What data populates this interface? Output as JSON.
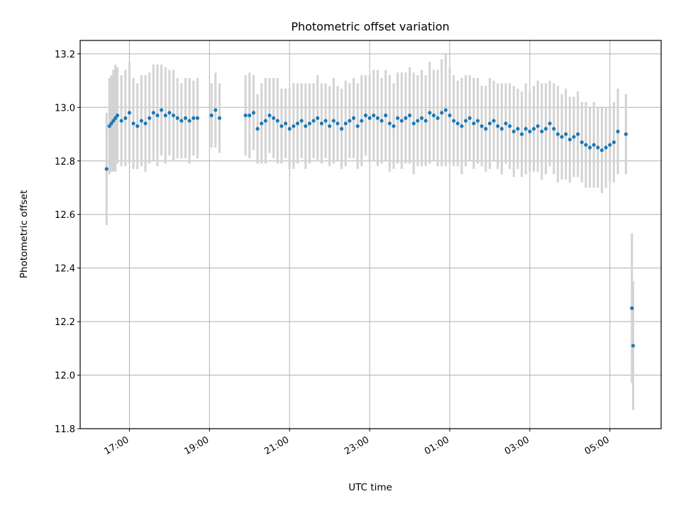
{
  "chart_data": {
    "type": "scatter",
    "title": "Photometric offset variation",
    "xlabel": "UTC time",
    "ylabel": "Photometric offset",
    "x_tick_labels": [
      "17:00",
      "19:00",
      "21:00",
      "23:00",
      "01:00",
      "03:00",
      "05:00"
    ],
    "x_tick_hours": [
      17,
      19,
      21,
      23,
      25,
      27,
      29
    ],
    "y_ticks": [
      11.8,
      12.0,
      12.2,
      12.4,
      12.6,
      12.8,
      13.0,
      13.2
    ],
    "xlim_hours": [
      15.77,
      30.28
    ],
    "ylim": [
      11.8,
      13.25
    ],
    "grid": true,
    "colors": {
      "points": "#1f77b4",
      "error_bars": "#d3d3d3",
      "grid": "#b0b0b0"
    },
    "series": [
      {
        "x_hours": [
          16.43,
          16.5,
          16.55,
          16.6,
          16.65,
          16.7,
          16.8,
          16.9,
          17.0,
          17.1,
          17.2,
          17.3,
          17.4,
          17.5,
          17.6,
          17.7,
          17.8,
          17.9,
          18.0,
          18.1,
          18.2,
          18.3,
          18.4,
          18.5,
          18.6,
          18.7,
          19.05,
          19.15,
          19.25,
          19.9,
          20.0,
          20.1,
          20.2,
          20.3,
          20.4,
          20.5,
          20.6,
          20.7,
          20.8,
          20.9,
          21.0,
          21.1,
          21.2,
          21.3,
          21.4,
          21.5,
          21.6,
          21.7,
          21.8,
          21.9,
          22.0,
          22.1,
          22.2,
          22.3,
          22.4,
          22.5,
          22.6,
          22.7,
          22.8,
          22.9,
          23.0,
          23.1,
          23.2,
          23.3,
          23.4,
          23.5,
          23.6,
          23.7,
          23.8,
          23.9,
          24.0,
          24.1,
          24.2,
          24.3,
          24.4,
          24.5,
          24.6,
          24.7,
          24.8,
          24.9,
          25.0,
          25.1,
          25.2,
          25.3,
          25.4,
          25.5,
          25.6,
          25.7,
          25.8,
          25.9,
          26.0,
          26.1,
          26.2,
          26.3,
          26.4,
          26.5,
          26.6,
          26.7,
          26.8,
          26.9,
          27.0,
          27.1,
          27.2,
          27.3,
          27.4,
          27.5,
          27.6,
          27.7,
          27.8,
          27.9,
          28.0,
          28.1,
          28.2,
          28.3,
          28.4,
          28.5,
          28.6,
          28.7,
          28.8,
          28.9,
          29.0,
          29.1,
          29.2,
          29.4,
          29.55,
          29.58
        ],
        "y": [
          12.77,
          12.93,
          12.94,
          12.95,
          12.96,
          12.97,
          12.95,
          12.96,
          12.98,
          12.94,
          12.93,
          12.95,
          12.94,
          12.96,
          12.98,
          12.97,
          12.99,
          12.97,
          12.98,
          12.97,
          12.96,
          12.95,
          12.96,
          12.95,
          12.96,
          12.96,
          12.97,
          12.99,
          12.96,
          12.97,
          12.97,
          12.98,
          12.92,
          12.94,
          12.95,
          12.97,
          12.96,
          12.95,
          12.93,
          12.94,
          12.92,
          12.93,
          12.94,
          12.95,
          12.93,
          12.94,
          12.95,
          12.96,
          12.94,
          12.95,
          12.93,
          12.95,
          12.94,
          12.92,
          12.94,
          12.95,
          12.96,
          12.93,
          12.95,
          12.97,
          12.96,
          12.97,
          12.96,
          12.95,
          12.97,
          12.94,
          12.93,
          12.96,
          12.95,
          12.96,
          12.97,
          12.94,
          12.95,
          12.96,
          12.95,
          12.98,
          12.97,
          12.96,
          12.98,
          12.99,
          12.97,
          12.95,
          12.94,
          12.93,
          12.95,
          12.96,
          12.94,
          12.95,
          12.93,
          12.92,
          12.94,
          12.95,
          12.93,
          12.92,
          12.94,
          12.93,
          12.91,
          12.92,
          12.9,
          12.92,
          12.91,
          12.92,
          12.93,
          12.91,
          12.92,
          12.94,
          12.92,
          12.9,
          12.89,
          12.9,
          12.88,
          12.89,
          12.9,
          12.87,
          12.86,
          12.85,
          12.86,
          12.85,
          12.84,
          12.85,
          12.86,
          12.87,
          12.91,
          12.9,
          12.25,
          12.11
        ],
        "err": [
          0.21,
          0.18,
          0.18,
          0.19,
          0.2,
          0.18,
          0.17,
          0.18,
          0.19,
          0.17,
          0.16,
          0.17,
          0.18,
          0.17,
          0.18,
          0.19,
          0.17,
          0.18,
          0.16,
          0.17,
          0.15,
          0.14,
          0.15,
          0.16,
          0.14,
          0.15,
          0.12,
          0.14,
          0.13,
          0.15,
          0.16,
          0.14,
          0.13,
          0.15,
          0.16,
          0.14,
          0.15,
          0.16,
          0.14,
          0.13,
          0.15,
          0.16,
          0.15,
          0.14,
          0.16,
          0.15,
          0.14,
          0.16,
          0.15,
          0.14,
          0.15,
          0.16,
          0.14,
          0.15,
          0.16,
          0.14,
          0.15,
          0.16,
          0.17,
          0.15,
          0.16,
          0.17,
          0.18,
          0.16,
          0.17,
          0.18,
          0.16,
          0.17,
          0.18,
          0.17,
          0.18,
          0.19,
          0.17,
          0.18,
          0.17,
          0.19,
          0.17,
          0.18,
          0.2,
          0.21,
          0.18,
          0.17,
          0.16,
          0.18,
          0.17,
          0.16,
          0.17,
          0.16,
          0.15,
          0.16,
          0.17,
          0.15,
          0.16,
          0.17,
          0.15,
          0.16,
          0.17,
          0.15,
          0.16,
          0.17,
          0.15,
          0.16,
          0.17,
          0.18,
          0.17,
          0.16,
          0.17,
          0.18,
          0.16,
          0.17,
          0.16,
          0.15,
          0.16,
          0.15,
          0.16,
          0.15,
          0.16,
          0.15,
          0.16,
          0.15,
          0.14,
          0.15,
          0.16,
          0.15,
          0.28,
          0.24
        ]
      }
    ]
  }
}
